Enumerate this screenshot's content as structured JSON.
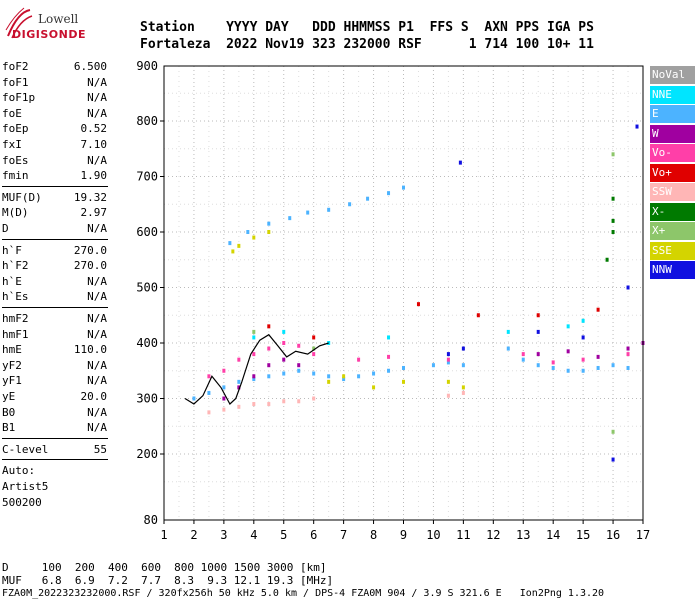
{
  "logo": {
    "line1": "Lowell",
    "line2": "DIGISONDE"
  },
  "header": {
    "line1": "Station    YYYY DAY   DDD HHMMSS P1  FFS S  AXN PPS IGA PS",
    "line2": "Fortaleza  2022 Nov19 323 232000 RSF      1 714 100 10+ 11"
  },
  "params": {
    "group1": [
      {
        "k": "foF2",
        "v": "6.500"
      },
      {
        "k": "foF1",
        "v": "N/A"
      },
      {
        "k": "foF1p",
        "v": "N/A"
      },
      {
        "k": "foE",
        "v": "N/A"
      },
      {
        "k": "foEp",
        "v": "0.52"
      },
      {
        "k": "fxI",
        "v": "7.10"
      },
      {
        "k": "foEs",
        "v": "N/A"
      },
      {
        "k": "fmin",
        "v": "1.90"
      }
    ],
    "group2": [
      {
        "k": "MUF(D)",
        "v": "19.32"
      },
      {
        "k": "M(D)",
        "v": "2.97"
      },
      {
        "k": "D",
        "v": "N/A"
      }
    ],
    "group3": [
      {
        "k": "h`F",
        "v": "270.0"
      },
      {
        "k": "h`F2",
        "v": "270.0"
      },
      {
        "k": "h`E",
        "v": "N/A"
      },
      {
        "k": "h`Es",
        "v": "N/A"
      }
    ],
    "group4": [
      {
        "k": "hmF2",
        "v": "N/A"
      },
      {
        "k": "hmF1",
        "v": "N/A"
      },
      {
        "k": "hmE",
        "v": "110.0"
      },
      {
        "k": "yF2",
        "v": "N/A"
      },
      {
        "k": "yF1",
        "v": "N/A"
      },
      {
        "k": "yE",
        "v": "20.0"
      },
      {
        "k": "B0",
        "v": "N/A"
      },
      {
        "k": "B1",
        "v": "N/A"
      }
    ],
    "clevel": {
      "k": "C-level",
      "v": "55"
    },
    "auto": [
      "Auto:",
      "Artist5",
      "500200"
    ]
  },
  "legend": [
    {
      "label": "NoVal",
      "color": "#a0a0a0"
    },
    {
      "label": "NNE",
      "color": "#00e5ff"
    },
    {
      "label": "E",
      "color": "#4cb3ff"
    },
    {
      "label": "W",
      "color": "#a000a0"
    },
    {
      "label": "Vo-",
      "color": "#ff3fa8"
    },
    {
      "label": "Vo+",
      "color": "#e00000"
    },
    {
      "label": "SSW",
      "color": "#ffb6b6"
    },
    {
      "label": "X-",
      "color": "#007a00"
    },
    {
      "label": "X+",
      "color": "#8dc66a"
    },
    {
      "label": "SSE",
      "color": "#d4d400"
    },
    {
      "label": "NNW",
      "color": "#1010e0"
    }
  ],
  "chart_data": {
    "type": "scatter",
    "x_ticks": [
      "1",
      "2",
      "3",
      "4",
      "5",
      "6",
      "7",
      "8",
      "9",
      "10",
      "11",
      "12",
      "13",
      "14",
      "15",
      "16",
      "17"
    ],
    "y_ticks": [
      "200",
      "300",
      "400",
      "500",
      "600",
      "700",
      "800"
    ],
    "y_top_label": "900",
    "y_bottom_label": "80",
    "xlim": [
      1,
      17
    ],
    "ylim": [
      80,
      900
    ],
    "grid": true,
    "legend_placement": "right",
    "series": [
      {
        "name": "E",
        "points": [
          [
            2.0,
            300
          ],
          [
            2.5,
            310
          ],
          [
            3.0,
            320
          ],
          [
            3.5,
            330
          ],
          [
            4.0,
            335
          ],
          [
            4.5,
            340
          ],
          [
            5.0,
            345
          ],
          [
            5.5,
            350
          ],
          [
            6.0,
            345
          ],
          [
            6.5,
            340
          ],
          [
            7.0,
            335
          ],
          [
            7.5,
            340
          ],
          [
            8.0,
            345
          ],
          [
            8.5,
            350
          ],
          [
            9.0,
            355
          ],
          [
            10.0,
            360
          ],
          [
            10.5,
            365
          ],
          [
            11.0,
            360
          ],
          [
            12.5,
            390
          ],
          [
            13.0,
            370
          ],
          [
            13.5,
            360
          ],
          [
            14.0,
            355
          ],
          [
            14.5,
            350
          ],
          [
            15.0,
            350
          ],
          [
            15.5,
            355
          ],
          [
            16.0,
            360
          ],
          [
            16.5,
            355
          ],
          [
            3.2,
            580
          ],
          [
            3.8,
            600
          ],
          [
            4.5,
            615
          ],
          [
            5.2,
            625
          ],
          [
            5.8,
            635
          ],
          [
            6.5,
            640
          ],
          [
            7.2,
            650
          ],
          [
            7.8,
            660
          ],
          [
            8.5,
            670
          ],
          [
            9.0,
            680
          ]
        ]
      },
      {
        "name": "Vo-",
        "points": [
          [
            2.5,
            340
          ],
          [
            3.0,
            350
          ],
          [
            3.5,
            370
          ],
          [
            4.0,
            380
          ],
          [
            4.5,
            390
          ],
          [
            5.0,
            400
          ],
          [
            5.5,
            395
          ],
          [
            6.0,
            380
          ],
          [
            7.5,
            370
          ],
          [
            8.5,
            375
          ],
          [
            10.5,
            370
          ],
          [
            13.0,
            380
          ],
          [
            14.0,
            365
          ],
          [
            15.0,
            370
          ],
          [
            16.5,
            380
          ]
        ]
      },
      {
        "name": "W",
        "points": [
          [
            3.0,
            300
          ],
          [
            3.5,
            320
          ],
          [
            4.0,
            340
          ],
          [
            4.5,
            360
          ],
          [
            5.0,
            370
          ],
          [
            5.5,
            360
          ],
          [
            13.5,
            380
          ],
          [
            14.5,
            385
          ],
          [
            15.5,
            375
          ],
          [
            16.5,
            390
          ],
          [
            17.0,
            400
          ]
        ]
      },
      {
        "name": "NNW",
        "points": [
          [
            10.5,
            380
          ],
          [
            11.0,
            390
          ],
          [
            13.5,
            420
          ],
          [
            15.0,
            410
          ],
          [
            16.0,
            190
          ],
          [
            16.5,
            500
          ],
          [
            16.8,
            790
          ],
          [
            10.9,
            725
          ]
        ]
      },
      {
        "name": "SSW",
        "points": [
          [
            2.5,
            275
          ],
          [
            3.0,
            280
          ],
          [
            3.5,
            285
          ],
          [
            4.0,
            290
          ],
          [
            4.5,
            290
          ],
          [
            5.0,
            295
          ],
          [
            5.5,
            295
          ],
          [
            6.0,
            300
          ],
          [
            10.5,
            305
          ],
          [
            11.0,
            310
          ]
        ]
      },
      {
        "name": "SSE",
        "points": [
          [
            6.5,
            330
          ],
          [
            7.0,
            340
          ],
          [
            8.0,
            320
          ],
          [
            9.0,
            330
          ],
          [
            10.5,
            330
          ],
          [
            11.0,
            320
          ],
          [
            3.3,
            565
          ],
          [
            3.5,
            575
          ],
          [
            4.0,
            590
          ],
          [
            4.5,
            600
          ]
        ]
      },
      {
        "name": "NNE",
        "points": [
          [
            4.0,
            410
          ],
          [
            5.0,
            420
          ],
          [
            6.5,
            400
          ],
          [
            8.5,
            410
          ],
          [
            12.5,
            420
          ],
          [
            14.5,
            430
          ],
          [
            15.0,
            440
          ]
        ]
      },
      {
        "name": "Vo+",
        "points": [
          [
            4.5,
            430
          ],
          [
            6.0,
            410
          ],
          [
            9.5,
            470
          ],
          [
            11.5,
            450
          ],
          [
            13.5,
            450
          ],
          [
            15.5,
            460
          ]
        ]
      },
      {
        "name": "X-",
        "points": [
          [
            16.0,
            600
          ],
          [
            16.0,
            620
          ],
          [
            16.0,
            660
          ],
          [
            15.8,
            550
          ]
        ]
      },
      {
        "name": "X+",
        "points": [
          [
            4.0,
            420
          ],
          [
            6.0,
            390
          ],
          [
            16.0,
            740
          ],
          [
            16.0,
            240
          ]
        ]
      }
    ],
    "trace": [
      [
        1.7,
        300
      ],
      [
        2.0,
        290
      ],
      [
        2.3,
        305
      ],
      [
        2.6,
        340
      ],
      [
        2.9,
        320
      ],
      [
        3.2,
        290
      ],
      [
        3.4,
        300
      ],
      [
        3.6,
        330
      ],
      [
        3.9,
        380
      ],
      [
        4.2,
        405
      ],
      [
        4.5,
        415
      ],
      [
        4.8,
        395
      ],
      [
        5.1,
        375
      ],
      [
        5.4,
        385
      ],
      [
        5.8,
        380
      ],
      [
        6.2,
        395
      ],
      [
        6.5,
        400
      ]
    ]
  },
  "footer": {
    "line1": "D     100  200  400  600  800 1000 1500 3000 [km]",
    "line2": "MUF   6.8  6.9  7.2  7.7  8.3  9.3 12.1 19.3 [MHz]",
    "line3": "FZA0M_2022323232000.RSF / 320fx256h 50 kHz 5.0 km / DPS-4 FZA0M 904 / 3.9 S 321.6 E   Ion2Png 1.3.20"
  }
}
